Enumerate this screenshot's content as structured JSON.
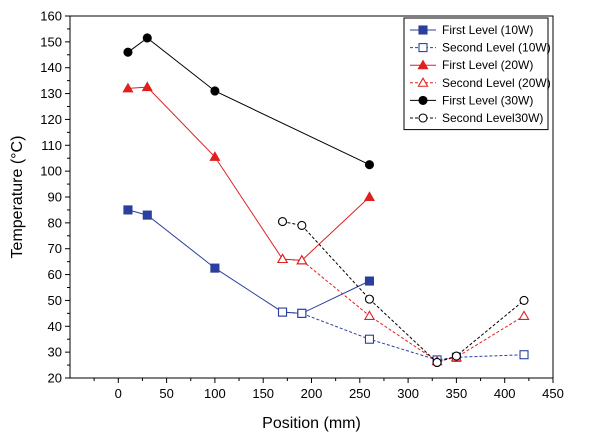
{
  "chart_data": {
    "type": "line",
    "title": "",
    "xlabel": "Position (mm)",
    "ylabel": "Temperature (°C)",
    "xlim": [
      -50,
      450
    ],
    "ylim": [
      20,
      160
    ],
    "xticks": [
      0,
      50,
      100,
      150,
      200,
      250,
      300,
      350,
      400,
      450
    ],
    "yticks": [
      20,
      30,
      40,
      50,
      60,
      70,
      80,
      90,
      100,
      110,
      120,
      130,
      140,
      150,
      160
    ],
    "grid": false,
    "legend_position": "top-right",
    "series": [
      {
        "name": "First Level (10W)",
        "color": "#2b3f9e",
        "marker": "square",
        "filled": true,
        "dashed": false,
        "points": [
          [
            10,
            85
          ],
          [
            30,
            83
          ],
          [
            100,
            62.5
          ],
          [
            170,
            45.5
          ],
          [
            190,
            45
          ],
          [
            260,
            57.5
          ]
        ]
      },
      {
        "name": "Second Level (10W)",
        "color": "#2b3f9e",
        "marker": "square",
        "filled": false,
        "dashed": true,
        "points": [
          [
            170,
            45.5
          ],
          [
            190,
            45
          ],
          [
            260,
            35
          ],
          [
            330,
            27
          ],
          [
            350,
            28
          ],
          [
            420,
            29
          ]
        ]
      },
      {
        "name": "First Level (20W)",
        "color": "#e02020",
        "marker": "triangle",
        "filled": true,
        "dashed": false,
        "points": [
          [
            10,
            132
          ],
          [
            30,
            132.5
          ],
          [
            100,
            105.5
          ],
          [
            170,
            66
          ],
          [
            190,
            65.5
          ],
          [
            260,
            90
          ]
        ]
      },
      {
        "name": "Second Level (20W)",
        "color": "#e02020",
        "marker": "triangle",
        "filled": false,
        "dashed": true,
        "points": [
          [
            170,
            66
          ],
          [
            190,
            65.5
          ],
          [
            260,
            44
          ],
          [
            330,
            26.5
          ],
          [
            350,
            28
          ],
          [
            420,
            44
          ]
        ]
      },
      {
        "name": "First Level (30W)",
        "color": "#000000",
        "marker": "circle",
        "filled": true,
        "dashed": false,
        "points": [
          [
            10,
            146
          ],
          [
            30,
            151.5
          ],
          [
            100,
            131
          ],
          [
            260,
            102.5
          ]
        ]
      },
      {
        "name": "Second Level30W)",
        "color": "#000000",
        "marker": "circle",
        "filled": false,
        "dashed": true,
        "points": [
          [
            170,
            80.5
          ],
          [
            190,
            79
          ],
          [
            260,
            50.5
          ],
          [
            330,
            26
          ],
          [
            350,
            28.5
          ],
          [
            420,
            50
          ]
        ]
      }
    ]
  }
}
